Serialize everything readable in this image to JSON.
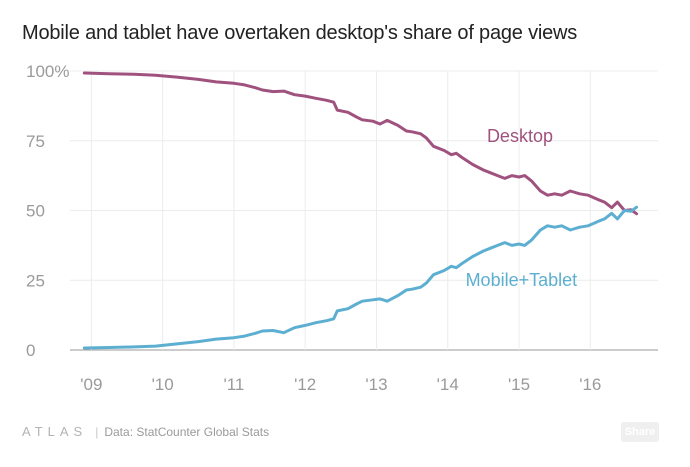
{
  "chart_data": {
    "type": "line",
    "title": "Mobile and tablet have overtaken desktop's share of page views",
    "xlabel": "",
    "ylabel": "",
    "ylim": [
      0,
      100
    ],
    "xlim": [
      2008.7,
      2016.95
    ],
    "y_ticks": [
      0,
      25,
      50,
      75,
      100
    ],
    "y_tick_labels": [
      "0",
      "25",
      "50",
      "75",
      "100%"
    ],
    "x_ticks": [
      2009,
      2010,
      2011,
      2012,
      2013,
      2014,
      2015,
      2016
    ],
    "x_tick_labels": [
      "'09",
      "'10",
      "'11",
      "'12",
      "'13",
      "'14",
      "'15",
      "'16"
    ],
    "series": [
      {
        "name": "Desktop",
        "color": "#a0527f",
        "points": [
          [
            2008.9,
            99.3
          ],
          [
            2009.25,
            99.0
          ],
          [
            2009.6,
            98.8
          ],
          [
            2009.9,
            98.5
          ],
          [
            2010.2,
            97.8
          ],
          [
            2010.5,
            97.0
          ],
          [
            2010.75,
            96.1
          ],
          [
            2011.0,
            95.6
          ],
          [
            2011.15,
            95.0
          ],
          [
            2011.3,
            94.0
          ],
          [
            2011.4,
            93.2
          ],
          [
            2011.55,
            92.6
          ],
          [
            2011.7,
            92.8
          ],
          [
            2011.85,
            91.5
          ],
          [
            2012.0,
            91.0
          ],
          [
            2012.15,
            90.2
          ],
          [
            2012.3,
            89.5
          ],
          [
            2012.4,
            88.8
          ],
          [
            2012.45,
            86.0
          ],
          [
            2012.6,
            85.2
          ],
          [
            2012.72,
            83.5
          ],
          [
            2012.8,
            82.5
          ],
          [
            2012.95,
            82.0
          ],
          [
            2013.05,
            81.0
          ],
          [
            2013.15,
            82.3
          ],
          [
            2013.3,
            80.5
          ],
          [
            2013.42,
            78.5
          ],
          [
            2013.5,
            78.2
          ],
          [
            2013.62,
            77.5
          ],
          [
            2013.7,
            76.0
          ],
          [
            2013.8,
            73.0
          ],
          [
            2013.95,
            71.5
          ],
          [
            2014.05,
            70.0
          ],
          [
            2014.12,
            70.5
          ],
          [
            2014.2,
            69.0
          ],
          [
            2014.35,
            66.5
          ],
          [
            2014.5,
            64.5
          ],
          [
            2014.6,
            63.5
          ],
          [
            2014.7,
            62.5
          ],
          [
            2014.8,
            61.5
          ],
          [
            2014.9,
            62.5
          ],
          [
            2015.0,
            62.0
          ],
          [
            2015.08,
            62.5
          ],
          [
            2015.18,
            60.5
          ],
          [
            2015.3,
            57.0
          ],
          [
            2015.4,
            55.5
          ],
          [
            2015.5,
            56.0
          ],
          [
            2015.6,
            55.5
          ],
          [
            2015.72,
            57.0
          ],
          [
            2015.85,
            56.0
          ],
          [
            2015.97,
            55.5
          ],
          [
            2016.1,
            54.0
          ],
          [
            2016.2,
            53.0
          ],
          [
            2016.3,
            51.0
          ],
          [
            2016.38,
            53.0
          ],
          [
            2016.48,
            50.0
          ],
          [
            2016.57,
            50.3
          ],
          [
            2016.65,
            48.8
          ]
        ]
      },
      {
        "name": "Mobile+Tablet",
        "color": "#5dafd1",
        "points": [
          [
            2008.9,
            0.7
          ],
          [
            2009.25,
            0.9
          ],
          [
            2009.6,
            1.1
          ],
          [
            2009.9,
            1.4
          ],
          [
            2010.2,
            2.2
          ],
          [
            2010.5,
            3.0
          ],
          [
            2010.75,
            3.9
          ],
          [
            2011.0,
            4.4
          ],
          [
            2011.15,
            5.0
          ],
          [
            2011.3,
            6.0
          ],
          [
            2011.4,
            6.8
          ],
          [
            2011.55,
            7.0
          ],
          [
            2011.7,
            6.2
          ],
          [
            2011.85,
            8.0
          ],
          [
            2012.0,
            8.8
          ],
          [
            2012.15,
            9.8
          ],
          [
            2012.3,
            10.5
          ],
          [
            2012.4,
            11.2
          ],
          [
            2012.45,
            14.0
          ],
          [
            2012.6,
            14.8
          ],
          [
            2012.72,
            16.5
          ],
          [
            2012.8,
            17.5
          ],
          [
            2012.95,
            18.0
          ],
          [
            2013.05,
            18.3
          ],
          [
            2013.15,
            17.5
          ],
          [
            2013.3,
            19.5
          ],
          [
            2013.42,
            21.5
          ],
          [
            2013.5,
            21.8
          ],
          [
            2013.62,
            22.5
          ],
          [
            2013.7,
            24.0
          ],
          [
            2013.8,
            27.0
          ],
          [
            2013.95,
            28.5
          ],
          [
            2014.05,
            30.0
          ],
          [
            2014.12,
            29.5
          ],
          [
            2014.2,
            31.0
          ],
          [
            2014.35,
            33.5
          ],
          [
            2014.5,
            35.5
          ],
          [
            2014.6,
            36.5
          ],
          [
            2014.7,
            37.5
          ],
          [
            2014.8,
            38.5
          ],
          [
            2014.9,
            37.5
          ],
          [
            2015.0,
            38.0
          ],
          [
            2015.08,
            37.5
          ],
          [
            2015.18,
            39.5
          ],
          [
            2015.3,
            43.0
          ],
          [
            2015.4,
            44.5
          ],
          [
            2015.5,
            44.0
          ],
          [
            2015.6,
            44.5
          ],
          [
            2015.72,
            43.0
          ],
          [
            2015.85,
            44.0
          ],
          [
            2015.97,
            44.5
          ],
          [
            2016.1,
            46.0
          ],
          [
            2016.2,
            47.0
          ],
          [
            2016.3,
            49.0
          ],
          [
            2016.38,
            47.0
          ],
          [
            2016.48,
            50.0
          ],
          [
            2016.57,
            49.7
          ],
          [
            2016.65,
            51.2
          ]
        ]
      }
    ],
    "annotations": [
      {
        "text": "Desktop",
        "series": "Desktop",
        "x": 2014.55,
        "y": 74.5
      },
      {
        "text": "Mobile+Tablet",
        "series": "Mobile+Tablet",
        "x": 2014.25,
        "y": 23
      }
    ]
  },
  "footer": {
    "logo": "ATLAS",
    "separator": "|",
    "source": "Data: StatCounter Global Stats"
  },
  "share_button": {
    "label": "Share"
  }
}
